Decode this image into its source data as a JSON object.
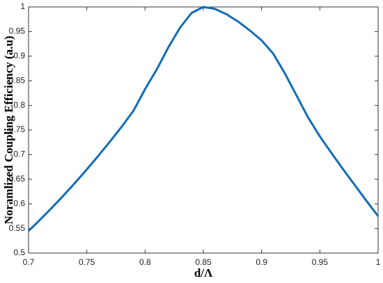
{
  "chart_data": {
    "type": "line",
    "x_label": "d/Λ",
    "y_label": "Noramlized Coupling Efficiency (a.u)",
    "x": [
      0.7,
      0.71,
      0.72,
      0.73,
      0.74,
      0.75,
      0.76,
      0.77,
      0.78,
      0.79,
      0.8,
      0.81,
      0.82,
      0.83,
      0.84,
      0.85,
      0.86,
      0.87,
      0.88,
      0.89,
      0.9,
      0.91,
      0.92,
      0.93,
      0.94,
      0.95,
      0.96,
      0.97,
      0.98,
      0.99,
      1.0
    ],
    "series": [
      {
        "color": "#0f6db5",
        "values": [
          0.545,
          0.568,
          0.592,
          0.617,
          0.643,
          0.67,
          0.698,
          0.727,
          0.757,
          0.789,
          0.833,
          0.873,
          0.918,
          0.958,
          0.988,
          1.0,
          0.996,
          0.985,
          0.97,
          0.952,
          0.932,
          0.905,
          0.865,
          0.82,
          0.775,
          0.737,
          0.703,
          0.67,
          0.638,
          0.606,
          0.575
        ]
      }
    ],
    "xlim": [
      0.7,
      1
    ],
    "ylim": [
      0.5,
      1
    ],
    "xticks": [
      0.7,
      0.75,
      0.8,
      0.85,
      0.9,
      0.95,
      1
    ],
    "yticks": [
      0.5,
      0.55,
      0.6,
      0.65,
      0.7,
      0.75,
      0.8,
      0.85,
      0.9,
      0.95,
      1
    ],
    "grid": false
  }
}
